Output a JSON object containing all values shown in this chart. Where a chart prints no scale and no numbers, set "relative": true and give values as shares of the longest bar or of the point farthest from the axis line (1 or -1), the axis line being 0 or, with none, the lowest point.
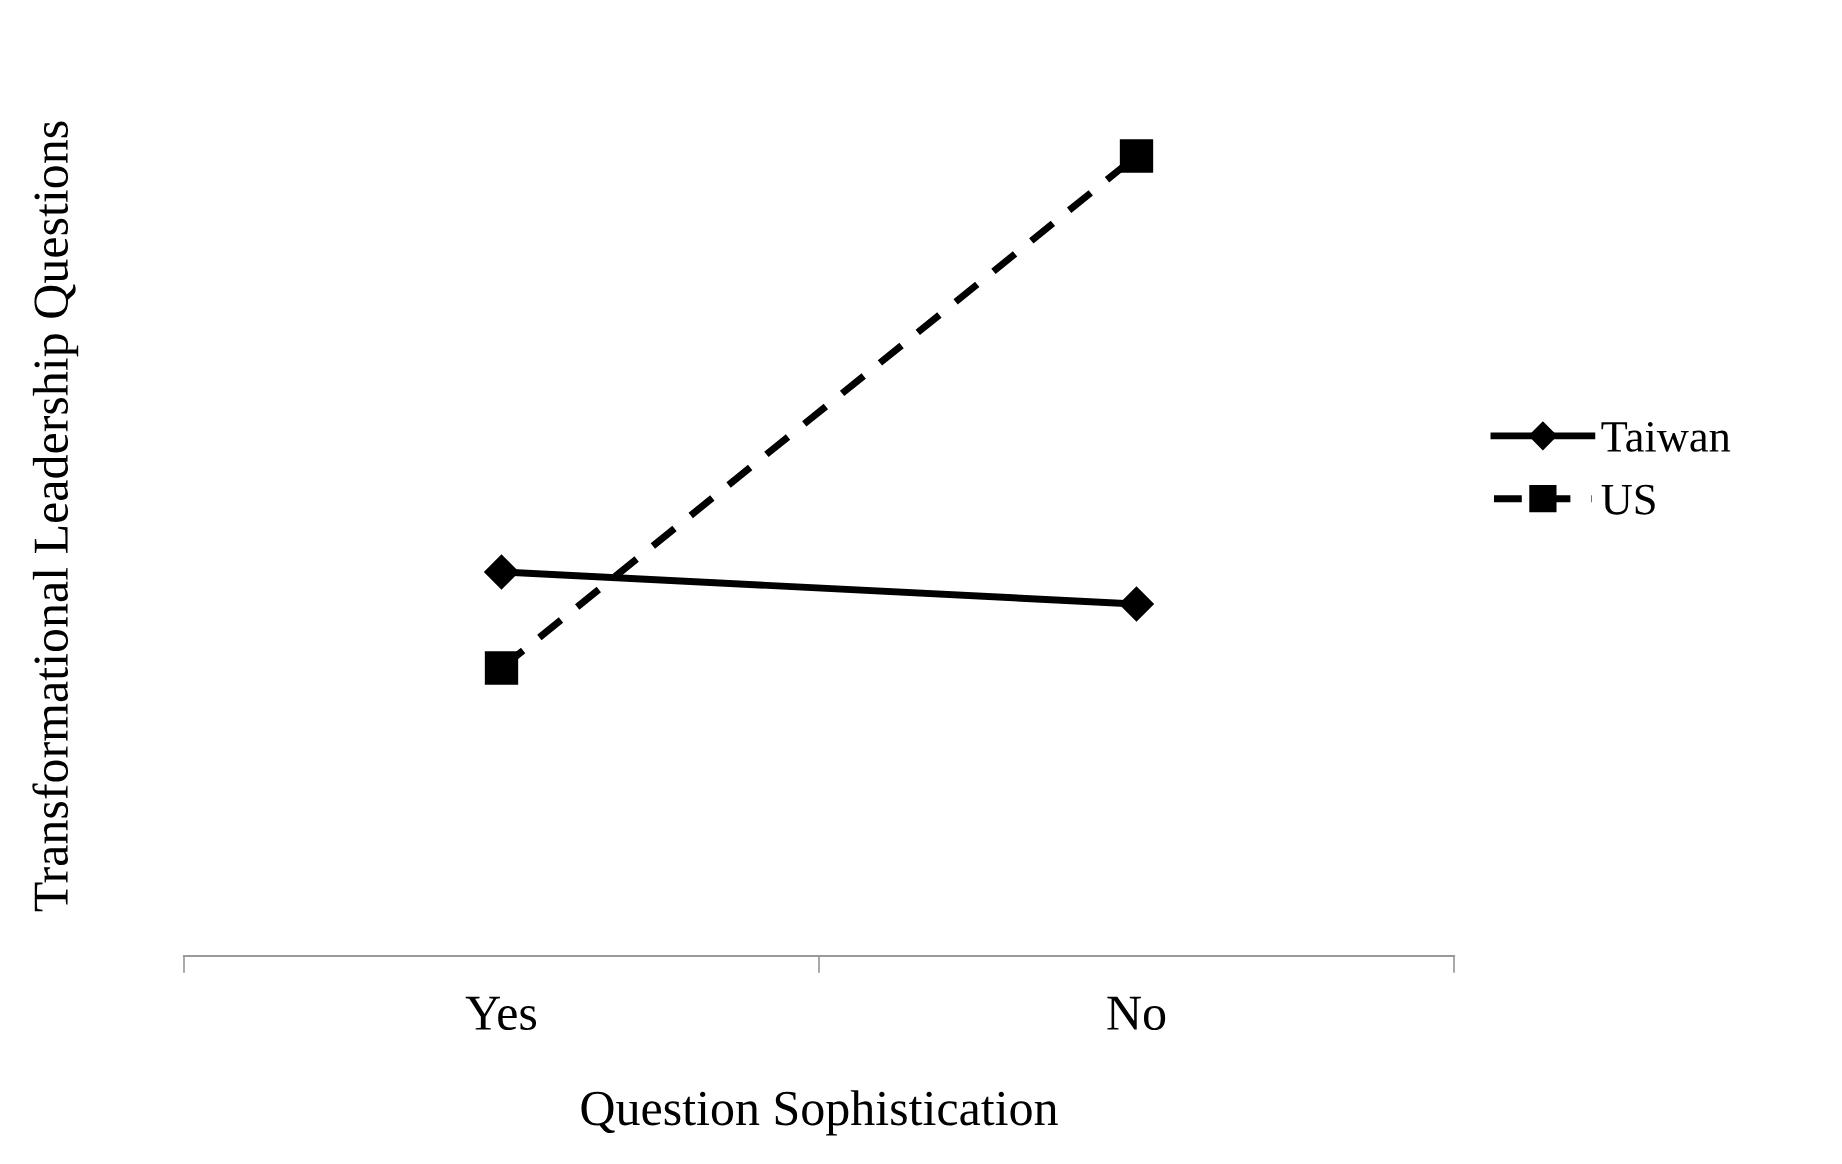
{
  "chart_data": {
    "type": "line",
    "relative": true,
    "xlabel": "Question Sophistication",
    "ylabel": "Transformational Leadership Questions",
    "categories": [
      "Yes",
      "No"
    ],
    "series": [
      {
        "name": "Taiwan",
        "color": "#000000",
        "values": [
          0.48,
          0.44
        ],
        "marker": "diamond",
        "line_style": "solid"
      },
      {
        "name": "US",
        "color": "#000000",
        "values": [
          0.36,
          1.0
        ],
        "marker": "square",
        "line_style": "dashed"
      }
    ],
    "grid": false,
    "legend": "right"
  }
}
